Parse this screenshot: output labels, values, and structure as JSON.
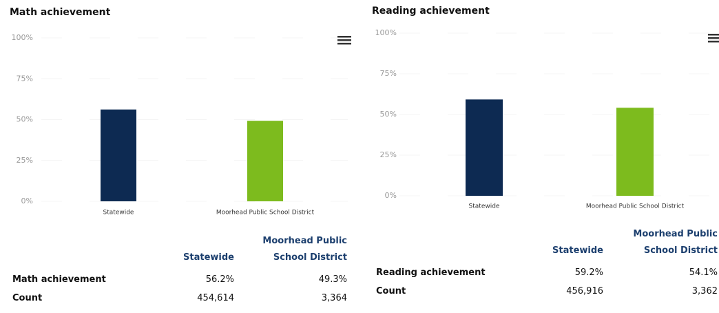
{
  "chart_data": [
    {
      "type": "bar",
      "title": "Math achievement",
      "categories": [
        "Statewide",
        "Moorhead Public School District"
      ],
      "values": [
        56.2,
        49.3
      ],
      "colors": [
        "#0d2a52",
        "#7dbb1e"
      ],
      "ylim": [
        0,
        100
      ],
      "yticks": [
        {
          "value": 0,
          "label": "0%"
        },
        {
          "value": 25,
          "label": "25%"
        },
        {
          "value": 50,
          "label": "50%"
        },
        {
          "value": 75,
          "label": "75%"
        },
        {
          "value": 100,
          "label": "100%"
        }
      ],
      "grid": true
    },
    {
      "type": "bar",
      "title": "Reading achievement",
      "categories": [
        "Statewide",
        "Moorhead Public School District"
      ],
      "values": [
        59.2,
        54.1
      ],
      "colors": [
        "#0d2a52",
        "#7dbb1e"
      ],
      "ylim": [
        0,
        100
      ],
      "yticks": [
        {
          "value": 0,
          "label": "0%"
        },
        {
          "value": 25,
          "label": "25%"
        },
        {
          "value": 50,
          "label": "50%"
        },
        {
          "value": 75,
          "label": "75%"
        },
        {
          "value": 100,
          "label": "100%"
        }
      ],
      "grid": true
    }
  ],
  "tables": [
    {
      "columns": [
        "Statewide",
        "Moorhead Public School District"
      ],
      "rows": [
        {
          "label": "Math achievement",
          "cells": [
            "56.2%",
            "49.3%"
          ]
        },
        {
          "label": "Count",
          "cells": [
            "454,614",
            "3,364"
          ]
        }
      ]
    },
    {
      "columns": [
        "Statewide",
        "Moorhead Public School District"
      ],
      "rows": [
        {
          "label": "Reading achievement",
          "cells": [
            "59.2%",
            "54.1%"
          ]
        },
        {
          "label": "Count",
          "cells": [
            "456,916",
            "3,362"
          ]
        }
      ]
    }
  ]
}
